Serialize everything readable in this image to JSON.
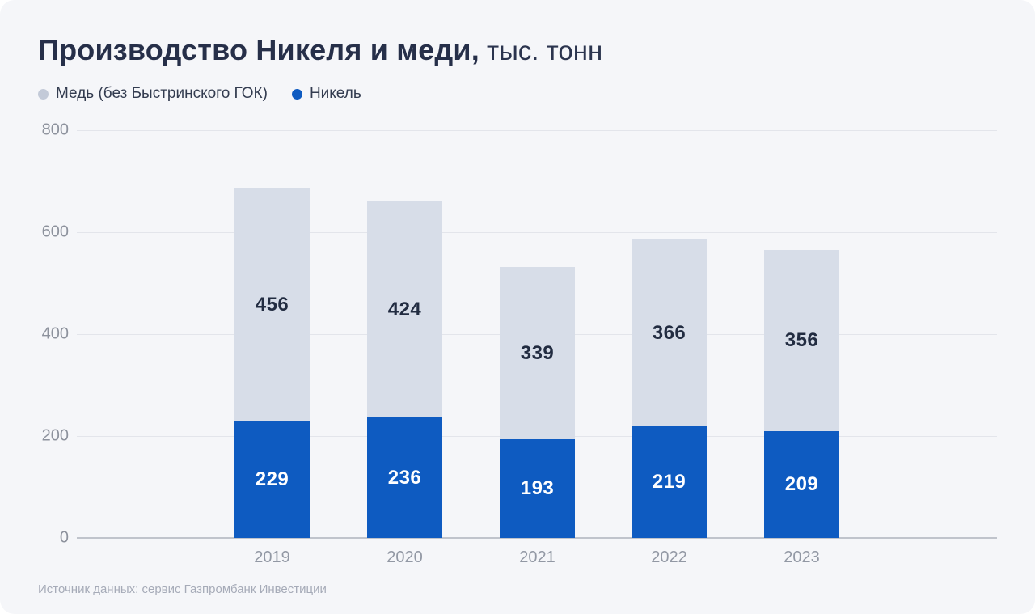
{
  "title": {
    "main": "Производство Никеля и меди,",
    "unit": "тыс. тонн"
  },
  "legend": {
    "items": [
      {
        "id": "copper",
        "label": "Медь (без Быстринского ГОК)",
        "color": "#c3cad8"
      },
      {
        "id": "nickel",
        "label": "Никель",
        "color": "#0e5bc1"
      }
    ]
  },
  "source_note": "Источник данных: сервис Газпромбанк Инвестиции",
  "colors": {
    "background": "#f5f6f9",
    "title_text": "#262f49",
    "legend_text": "#333c50",
    "axis_text": "#8d929d",
    "gridline": "#e3e5eb",
    "baseline": "#c0c4cc",
    "nickel_bar": "#0e5bc1",
    "copper_bar": "#d7dde8",
    "nickel_label": "#ffffff",
    "copper_label": "#222c41"
  },
  "chart_data": {
    "type": "bar",
    "stacked": true,
    "title": "Производство Никеля и меди, тыс. тонн",
    "xlabel": "",
    "ylabel": "",
    "categories": [
      "2019",
      "2020",
      "2021",
      "2022",
      "2023"
    ],
    "series": [
      {
        "id": "nickel",
        "name": "Никель",
        "values": [
          229,
          236,
          193,
          219,
          209
        ],
        "color": "#0e5bc1",
        "label_color": "#ffffff"
      },
      {
        "id": "copper",
        "name": "Медь (без Быстринского ГОК)",
        "values": [
          456,
          424,
          339,
          366,
          356
        ],
        "color": "#d7dde8",
        "label_color": "#222c41"
      }
    ],
    "yticks": [
      0,
      200,
      400,
      600,
      800
    ],
    "ylim": [
      0,
      800
    ],
    "grid": true,
    "legend_position": "top-left"
  }
}
